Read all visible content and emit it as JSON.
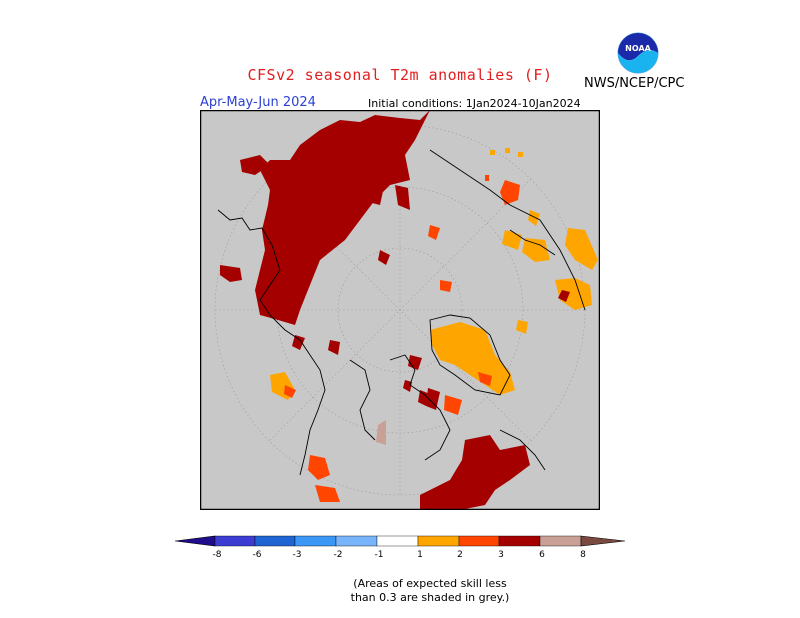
{
  "header": {
    "title": "CFSv2 seasonal T2m anomalies (F)",
    "agency": "NWS/NCEP/CPC",
    "season": "Apr-May-Jun 2024",
    "initial_conditions": "Initial conditions: 1Jan2024-10Jan2024",
    "logo_text": "NOAA"
  },
  "colors": {
    "no_skill_grey": "#c8c8c8",
    "warm_1_2": "#ffa500",
    "warm_2_3": "#ff4500",
    "warm_3_6": "#a50000",
    "warm_6_8": "#c8a096",
    "warm_gt8": "#7a4a40",
    "cold_lt8": "#1e0d8c",
    "cold_8_6": "#3c3cd2",
    "cold_6_3": "#1e64d2",
    "cold_3_2": "#3c96f5",
    "cold_2_1": "#78b4fa"
  },
  "colorbar": {
    "ticks": [
      "-8",
      "-6",
      "-3",
      "-2",
      "-1",
      "1",
      "2",
      "3",
      "6",
      "8"
    ]
  },
  "footnote": {
    "line1": "(Areas of expected skill less",
    "line2": "than 0.3 are shaded in grey.)"
  }
}
